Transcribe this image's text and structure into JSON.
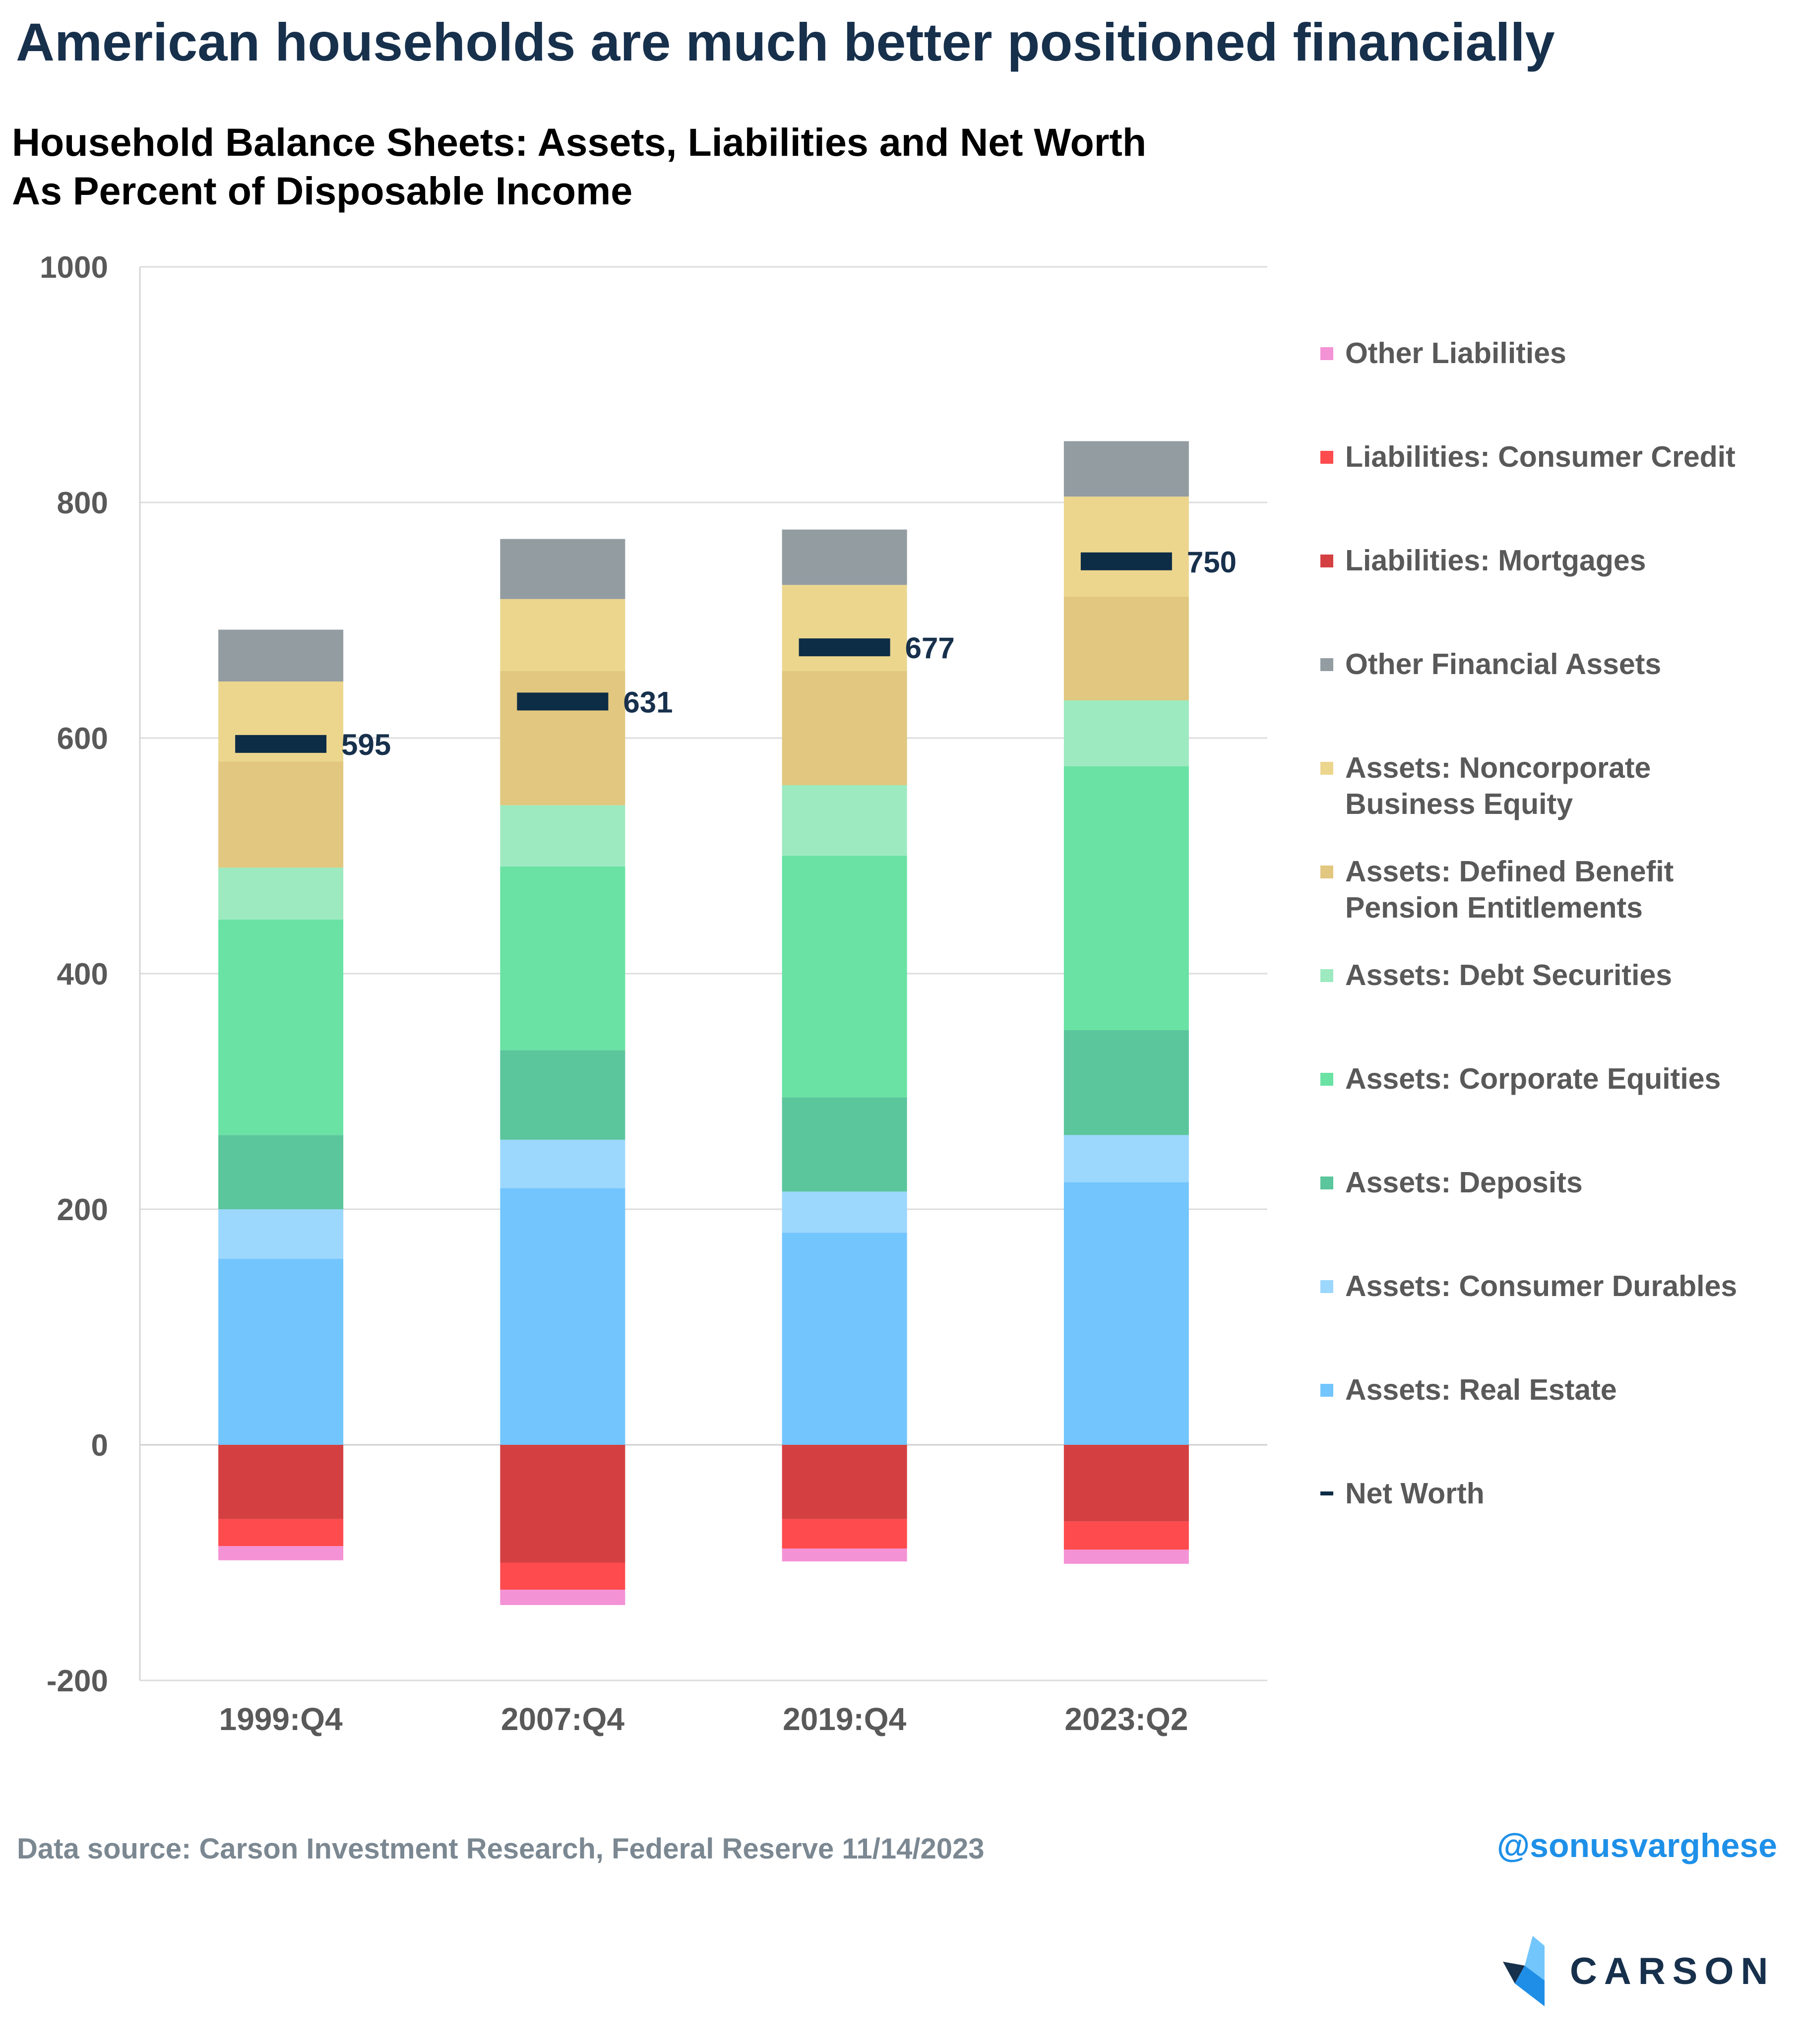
{
  "header": {
    "headline": "American households are much better positioned financially",
    "subtitle_line1": "Household Balance Sheets: Assets, Liabilities and Net Worth",
    "subtitle_line2": "As Percent of Disposable Income"
  },
  "footer": {
    "source": "Data source: Carson Investment Research, Federal Reserve   11/14/2023",
    "handle": "@sonusvarghese",
    "logo_text": "CARSON"
  },
  "chart_data": {
    "type": "bar",
    "stacked": true,
    "ylim": [
      -200,
      1000
    ],
    "yticks": [
      -200,
      0,
      200,
      400,
      600,
      800,
      1000
    ],
    "grid": true,
    "legend_position": "right",
    "categories": [
      "1999:Q4",
      "2007:Q4",
      "2019:Q4",
      "2023:Q2"
    ],
    "series": [
      {
        "name": "Assets: Real Estate",
        "values": [
          158,
          218,
          180,
          223
        ],
        "color": "#73c5fd"
      },
      {
        "name": "Assets: Consumer Durables",
        "values": [
          42,
          41,
          35,
          40
        ],
        "color": "#9cd7fe"
      },
      {
        "name": "Assets: Deposits",
        "values": [
          63,
          76,
          80,
          89
        ],
        "color": "#5bc59c"
      },
      {
        "name": "Assets: Corporate Equities",
        "values": [
          183,
          156,
          205,
          224
        ],
        "color": "#69e2a4"
      },
      {
        "name": "Assets: Debt Securities",
        "values": [
          44,
          52,
          60,
          56
        ],
        "color": "#9deac0"
      },
      {
        "name": "Assets: Defined Benefit Pension Entitlements",
        "values": [
          90,
          114,
          97,
          88
        ],
        "color": "#e1c77f"
      },
      {
        "name": "Assets: Noncorporate Business Equity",
        "values": [
          68,
          61,
          73,
          85
        ],
        "color": "#ecd68e"
      },
      {
        "name": "Other Financial Assets",
        "values": [
          44,
          51,
          47,
          47
        ],
        "color": "#939ca1"
      },
      {
        "name": "Liabilities: Mortgages",
        "values": [
          -63,
          -100,
          -63,
          -65
        ],
        "color": "#d44042"
      },
      {
        "name": "Liabilities: Consumer Credit",
        "values": [
          -23,
          -23,
          -25,
          -24
        ],
        "color": "#fd4b4e"
      },
      {
        "name": "Other Liabilities",
        "values": [
          -12,
          -13,
          -11,
          -12
        ],
        "color": "#f492d6"
      },
      {
        "name": "Net Worth",
        "values": [
          595,
          631,
          677,
          750
        ],
        "color": "#0d2c46",
        "type": "marker"
      }
    ],
    "legend_order": [
      "Other Liabilities",
      "Liabilities: Consumer Credit",
      "Liabilities: Mortgages",
      "Other Financial Assets",
      "Assets: Noncorporate Business Equity",
      "Assets: Defined Benefit Pension Entitlements",
      "Assets: Debt Securities",
      "Assets: Corporate Equities",
      "Assets: Deposits",
      "Assets: Consumer Durables",
      "Assets: Real Estate",
      "Net Worth"
    ],
    "legend_labels": {
      "Assets: Noncorporate Business Equity": [
        "Assets: Noncorporate",
        "Business Equity"
      ],
      "Assets: Defined Benefit Pension Entitlements": [
        "Assets: Defined Benefit",
        "Pension Entitlements"
      ]
    }
  }
}
